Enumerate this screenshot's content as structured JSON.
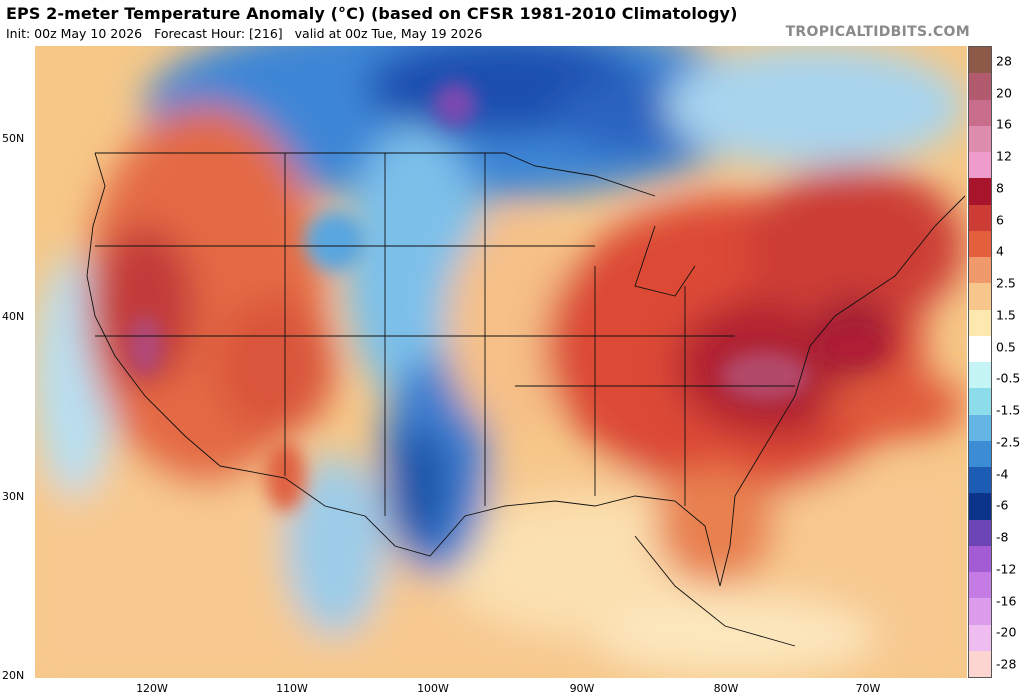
{
  "header": {
    "title": "EPS 2-meter Temperature Anomaly (°C) (based on CFSR 1981-2010 Climatology)",
    "init": "Init: 00z May 10 2026",
    "forecast_hour": "Forecast Hour: [216]",
    "valid": "valid at 00z Tue, May 19 2026",
    "credit": "TROPICALTIDBITS.COM"
  },
  "axes": {
    "lat_labels": [
      "50N",
      "40N",
      "30N",
      "20N"
    ],
    "lon_labels": [
      "120W",
      "110W",
      "100W",
      "90W",
      "80W",
      "70W"
    ]
  },
  "colorbar": {
    "ticks": [
      "28",
      "20",
      "16",
      "12",
      "8",
      "6",
      "4",
      "2.5",
      "1.5",
      "0.5",
      "-0.5",
      "-1.5",
      "-2.5",
      "-4",
      "-6",
      "-8",
      "-12",
      "-16",
      "-20",
      "-28"
    ],
    "colors": [
      "#8c5a46",
      "#b25a6e",
      "#c86e8c",
      "#dc8cac",
      "#ee9ccc",
      "#a8142c",
      "#cc3c34",
      "#e4603c",
      "#f09a6c",
      "#f8c68c",
      "#fde8b0",
      "#ffffff",
      "#c4f4f4",
      "#8cdcec",
      "#64b4e4",
      "#3c8cd4",
      "#1c5cb4",
      "#0c3488",
      "#6c44b4",
      "#a45cd4",
      "#c47ce4",
      "#dc9cec",
      "#eebcf0",
      "#fcd4d0"
    ]
  },
  "colors": {
    "warm_strong": "#b01e2e",
    "warm": "#e0553a",
    "warm_light": "#f5b07a",
    "neutral_warm": "#fbd9a0",
    "cool_light": "#8cd0ec",
    "cool": "#4a98dc",
    "cool_strong": "#1c4ca8",
    "purple": "#9050b8"
  }
}
